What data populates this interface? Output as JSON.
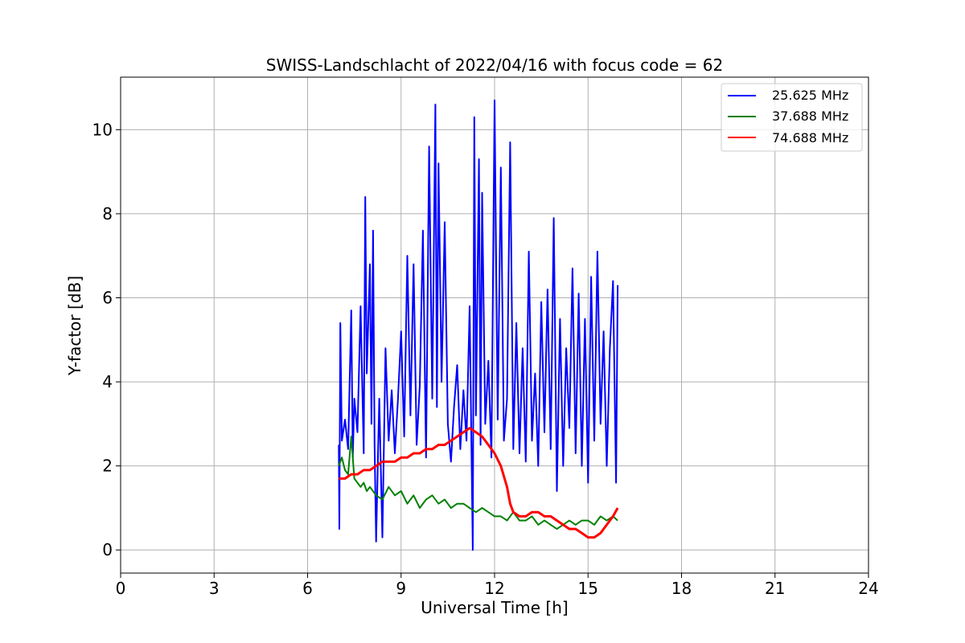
{
  "chart_data": {
    "type": "line",
    "title": "SWISS-Landschlacht of 2022/04/16 with focus code = 62",
    "xlabel": "Universal Time [h]",
    "ylabel": "Y-factor [dB]",
    "xlim": [
      0,
      24
    ],
    "ylim": [
      -0.55,
      11.25
    ],
    "xticks": [
      0,
      3,
      6,
      9,
      12,
      15,
      18,
      21,
      24
    ],
    "yticks": [
      0,
      2,
      4,
      6,
      8,
      10
    ],
    "grid": true,
    "legend_position": "top-right",
    "series": [
      {
        "name": "25.625 MHz",
        "color": "#0000ff",
        "x": [
          7.0,
          7.02,
          7.05,
          7.1,
          7.2,
          7.3,
          7.4,
          7.45,
          7.5,
          7.6,
          7.7,
          7.8,
          7.85,
          7.9,
          8.0,
          8.05,
          8.1,
          8.15,
          8.2,
          8.3,
          8.4,
          8.5,
          8.6,
          8.7,
          8.8,
          8.9,
          9.0,
          9.1,
          9.2,
          9.3,
          9.4,
          9.5,
          9.6,
          9.7,
          9.8,
          9.9,
          10.0,
          10.1,
          10.15,
          10.2,
          10.3,
          10.4,
          10.5,
          10.6,
          10.7,
          10.8,
          10.9,
          11.0,
          11.1,
          11.2,
          11.3,
          11.35,
          11.4,
          11.5,
          11.55,
          11.6,
          11.7,
          11.8,
          11.9,
          12.0,
          12.1,
          12.2,
          12.3,
          12.4,
          12.5,
          12.6,
          12.7,
          12.8,
          12.9,
          13.0,
          13.1,
          13.2,
          13.3,
          13.4,
          13.5,
          13.6,
          13.7,
          13.8,
          13.9,
          14.0,
          14.1,
          14.2,
          14.3,
          14.4,
          14.5,
          14.6,
          14.7,
          14.8,
          14.9,
          15.0,
          15.1,
          15.2,
          15.3,
          15.4,
          15.5,
          15.6,
          15.7,
          15.8,
          15.9,
          15.95
        ],
        "y": [
          2.5,
          0.5,
          5.4,
          2.6,
          3.1,
          2.4,
          5.7,
          2.2,
          3.6,
          2.8,
          5.8,
          2.3,
          8.4,
          4.2,
          6.8,
          3.0,
          7.6,
          2.5,
          0.2,
          3.6,
          0.3,
          4.8,
          2.6,
          3.8,
          2.3,
          3.6,
          5.2,
          2.7,
          7.0,
          3.2,
          6.8,
          2.5,
          3.9,
          7.6,
          2.2,
          9.6,
          3.6,
          10.6,
          3.4,
          9.2,
          4.0,
          7.8,
          3.0,
          2.1,
          3.4,
          4.4,
          2.4,
          3.8,
          2.6,
          5.8,
          0.0,
          10.3,
          3.2,
          9.3,
          2.5,
          8.5,
          3.0,
          4.5,
          2.2,
          10.7,
          3.1,
          9.1,
          2.6,
          3.6,
          9.7,
          2.4,
          5.4,
          2.3,
          4.8,
          2.1,
          7.1,
          2.6,
          4.2,
          2.0,
          5.9,
          2.8,
          6.2,
          2.4,
          7.9,
          1.4,
          5.5,
          2.0,
          4.8,
          2.9,
          6.7,
          2.3,
          6.1,
          2.0,
          5.5,
          1.6,
          6.5,
          2.6,
          7.1,
          3.0,
          5.2,
          2.0,
          4.8,
          6.4,
          1.6,
          6.3
        ]
      },
      {
        "name": "37.688 MHz",
        "color": "#008000",
        "x": [
          7.0,
          7.1,
          7.2,
          7.3,
          7.4,
          7.5,
          7.6,
          7.7,
          7.8,
          7.9,
          8.0,
          8.2,
          8.4,
          8.6,
          8.8,
          9.0,
          9.2,
          9.4,
          9.6,
          9.8,
          10.0,
          10.2,
          10.4,
          10.6,
          10.8,
          11.0,
          11.2,
          11.4,
          11.6,
          11.8,
          12.0,
          12.2,
          12.4,
          12.6,
          12.8,
          13.0,
          13.2,
          13.4,
          13.6,
          13.8,
          14.0,
          14.2,
          14.4,
          14.6,
          14.8,
          15.0,
          15.2,
          15.4,
          15.6,
          15.8,
          15.95
        ],
        "y": [
          2.0,
          2.2,
          1.9,
          1.8,
          2.7,
          1.7,
          1.6,
          1.5,
          1.6,
          1.4,
          1.5,
          1.3,
          1.2,
          1.5,
          1.3,
          1.4,
          1.1,
          1.3,
          1.0,
          1.2,
          1.3,
          1.1,
          1.2,
          1.0,
          1.1,
          1.1,
          1.0,
          0.9,
          1.0,
          0.9,
          0.8,
          0.8,
          0.7,
          0.9,
          0.7,
          0.7,
          0.8,
          0.6,
          0.7,
          0.6,
          0.5,
          0.6,
          0.7,
          0.6,
          0.7,
          0.7,
          0.6,
          0.8,
          0.7,
          0.8,
          0.7
        ]
      },
      {
        "name": "74.688 MHz",
        "color": "#ff0000",
        "x": [
          7.0,
          7.2,
          7.4,
          7.6,
          7.8,
          8.0,
          8.2,
          8.4,
          8.6,
          8.8,
          9.0,
          9.2,
          9.4,
          9.6,
          9.8,
          10.0,
          10.2,
          10.4,
          10.6,
          10.8,
          11.0,
          11.2,
          11.4,
          11.6,
          11.8,
          12.0,
          12.2,
          12.4,
          12.5,
          12.6,
          12.8,
          13.0,
          13.2,
          13.4,
          13.6,
          13.8,
          14.0,
          14.2,
          14.4,
          14.6,
          14.8,
          15.0,
          15.2,
          15.4,
          15.6,
          15.8,
          15.95
        ],
        "y": [
          1.7,
          1.7,
          1.8,
          1.8,
          1.9,
          1.9,
          2.0,
          2.1,
          2.1,
          2.1,
          2.2,
          2.2,
          2.3,
          2.3,
          2.4,
          2.4,
          2.5,
          2.5,
          2.6,
          2.7,
          2.8,
          2.9,
          2.8,
          2.7,
          2.5,
          2.3,
          2.0,
          1.5,
          1.1,
          0.9,
          0.8,
          0.8,
          0.9,
          0.9,
          0.8,
          0.8,
          0.7,
          0.6,
          0.5,
          0.5,
          0.4,
          0.3,
          0.3,
          0.4,
          0.6,
          0.8,
          1.0
        ]
      }
    ]
  }
}
